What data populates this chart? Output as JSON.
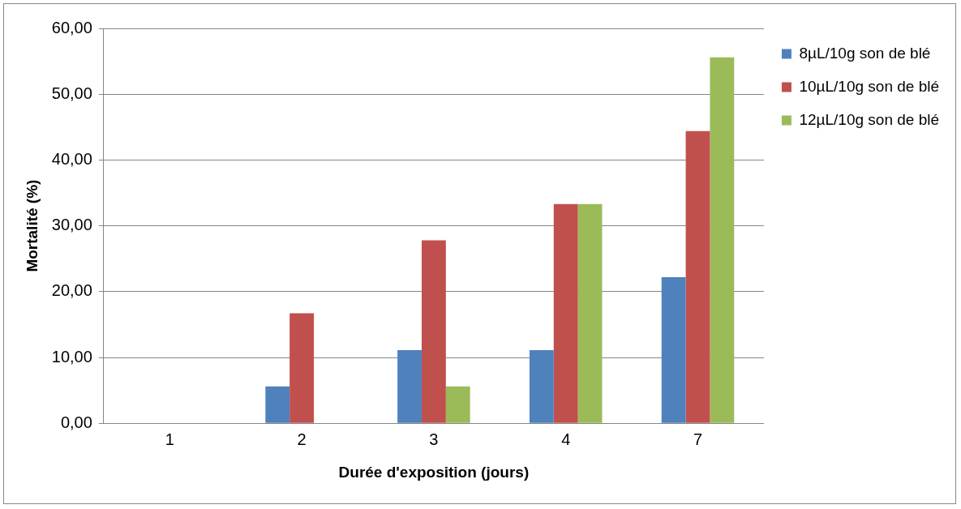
{
  "chart_data": {
    "type": "bar",
    "xlabel": "Durée d'exposition (jours)",
    "ylabel": "Mortalité (%)",
    "categories": [
      "1",
      "2",
      "3",
      "4",
      "7"
    ],
    "series": [
      {
        "name": "8µL/10g son de blé",
        "color": "#4f81bd",
        "values": [
          0,
          5.6,
          11.1,
          11.1,
          22.2
        ]
      },
      {
        "name": "10µL/10g son de blé",
        "color": "#c0504d",
        "values": [
          0,
          16.7,
          27.8,
          33.3,
          44.4
        ]
      },
      {
        "name": "12µL/10g son de blé",
        "color": "#9bbb59",
        "values": [
          0,
          0,
          5.6,
          33.3,
          55.6
        ]
      }
    ],
    "ylim": [
      0,
      60
    ],
    "yticks": [
      {
        "value": 0,
        "label": "0,00"
      },
      {
        "value": 10,
        "label": "10,00"
      },
      {
        "value": 20,
        "label": "20,00"
      },
      {
        "value": 30,
        "label": "30,00"
      },
      {
        "value": 40,
        "label": "40,00"
      },
      {
        "value": 50,
        "label": "50,00"
      },
      {
        "value": 60,
        "label": "60,00"
      }
    ],
    "grid": "y",
    "legend": "top right"
  }
}
